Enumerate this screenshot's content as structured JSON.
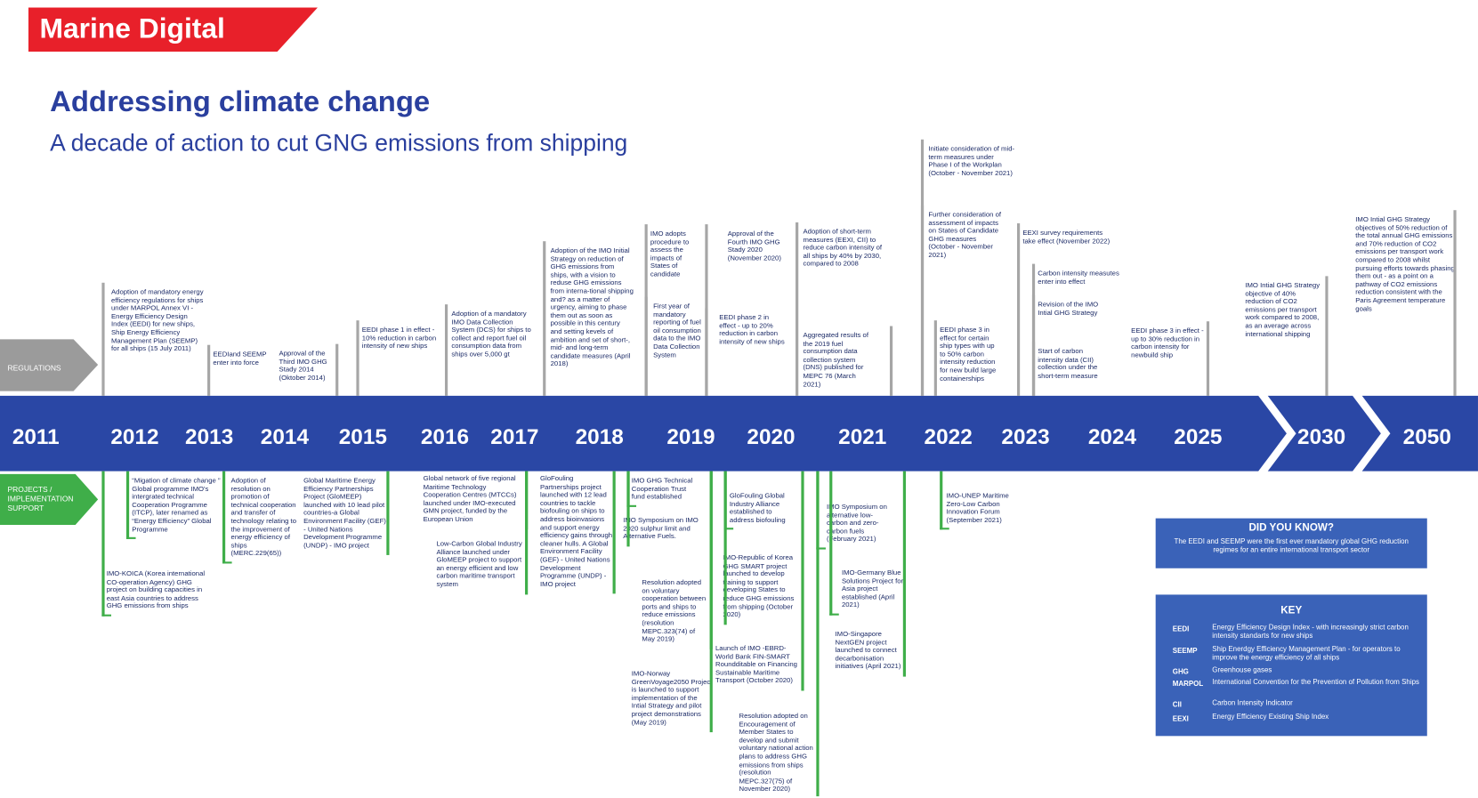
{
  "header": {
    "brand": "Marine Digital",
    "title": "Addressing climate change",
    "subtitle": "A decade of action to cut GNG emissions from shipping"
  },
  "timeline": {
    "regulations_label": "REGULATIONS",
    "projects_label": "PROJECTS / IMPLEMENTATION SUPPORT",
    "years": [
      "2011",
      "2012",
      "2013",
      "2014",
      "2015",
      "2016",
      "2017",
      "2018",
      "2019",
      "2020",
      "2021",
      "2022",
      "2023",
      "2024",
      "2025",
      "2030",
      "2050"
    ]
  },
  "regulations": [
    "Adoption of mandatory energy efficiency regulations for ships under MARPOL Annex VI - Energy Efficiency Design Index (EEDI) for new ships, Ship Energy Efficiency Management Plan (SEEMP) for all ships (15 July 2011)",
    "EEDIand SEEMP enter into force",
    "Approval of the Third IMO GHG Stady 2014 (Oktober 2014)",
    "EEDI phase 1 in effect - 10% reduction in carbon intensity of new ships",
    "Adoption of a mandatory IMO Data Collection System (DCS) for ships to collect and report fuel oil consumption data from ships over 5,000 gt",
    "Adoption of the IMO Initial Strategy on reduction of GHG emissions from ships, with a vision to reduse GHG emissions from interna-tional shipping and? as a matter of urgency, aiming to phase them out as soon as possible in this century and setting kevels of ambition and set of short-, mid- and long-term candidate measures (April 2018)",
    "IMO adopts procedure to assess the impacts of States of candidate",
    "First year of mandatory reporting of fuel oil consumption data to the IMO Data Collection System",
    "Approval of the Fourth IMO GHG Stady 2020 (November 2020)",
    "EEDI phase 2 in effect - up to 20% reduction in carbon intensity of new ships",
    "Adoption of short-term measures (EEXI, CII) to reduce carbon intensity of all ships by 40% by 2030, compared to 2008",
    "Aggregated results of the 2019 fuel consumption data collection system (DNS) published for MEPC 76 (March 2021)",
    "Initiate consideration of mid-term measures under Phase I of the Workplan (October - November 2021)",
    "Further consideration of assessment of impacts on States of Candidate GHG measures (October - November 2021)",
    "EEDI phase 3 in effect for certain ship types with up to 50% carbon intensity reduction for new build large containerships",
    "EEXI survey requirements take effect (November 2022)",
    "Carbon intensity measutes enter into effect",
    "Revision of the IMO Intial GHG Strategy",
    "Start of carbon intensity data (CII) collection under the short-term measure",
    "EEDI phase 3 in effect - up to 30% reduction in carbon intensity for newbuild ship",
    "IMO Intial GHG Strategy objective of 40% reduction of CO2 emissions per transport work compared to 2008, as an average across international shipping",
    "IMO Intial GHG Strategy objectives of 50% reduction of the total annual GHG emissions and 70% reduction of CO2 emissions per transport work compared to 2008 whilst pursuing efforts towards phasing them out - as a point on a pathway of CO2 emissions reduction consistent with the Paris Agreement temperature goals"
  ],
  "projects": [
    "“Migation of climate change ” Global programme IMO's intergrated technical Cooperation Programme (ITCP), later renamed as “Energy Efficiency” Global Programme",
    "IMO-KOICA (Korea international CO-operation Agency) GHG project on building capacities in east Asia countries to address GHG emissions from ships",
    "Adoption of resolution on promotion of technical cooperation and transfer of technology relating to the improvement of energy efficiency of ships (MERC.229(65))",
    "Global Maritime Energy Efficiency Partnerships Project (GloMEEP) launched with 10 lead pilot countries-a Global Environment Facility (GEF) - United Nations Development Programme (UNDP) - IMO project",
    "Global network of five regional Maritime Technology Cooperation Centres (MTCCs) launched under IMO-executed GMN project, funded by the European Union",
    "Low-Carbon Global Industry Alliance launched under GloMEEP project to support an energy efficient and low carbon maritime transport system",
    "GloFouling Partnerships project launched with 12 lead countries to tackle biofouling on ships to address bioinvasions and support energy efficiency gains through cleaner hulls. A Global Environment Facility (GEF) - United Nations Development Programme (UNDP) - IMO project",
    "IMO GHG Technical Cooperation Trust fund established",
    "IMO Symposium on IMO 2020 sulphur limit and Alternative Fuels.",
    "Resolution adopted on voluntary cooperation between ports and ships to reduce emissions (resolution MEPC.323(74) of May 2019)",
    "IMO-Norway GreenVoyage2050 Project is launched to support implementation of the Intial Strategy and pilot project demonstrations (May 2019)",
    "GloFouling Global Industry Alliance established to address biofouling",
    "IMO-Republic of Korea GHG SMART project launched to develop training to support developing States to reduce GHG emissions from shipping (October 2020)",
    "Launch of IMO -EBRD-World Bank FIN-SMART Roundditable on Financing Sustainable Maritime Transport (October 2020)",
    "Resolution adopted on Encouragement of Member States to develop and submit voluntary national action plans to address GHG emissions from ships (resolution MEPC.327(75) of November 2020)",
    "IMO Symposium on alternative low-carbon and zero-carbon fuels (February 2021)",
    "IMO-Germany Blue Solutions Project for Asia project established (April 2021)",
    "IMO-Singapore NextGEN project launched to connect decarbonisation initiatives (April 2021)",
    "IMO-UNEP Maritime Zero-Low Carbon Innovation Forum (September 2021)"
  ],
  "did_you_know": {
    "title": "DID YOU KNOW?",
    "text": "The EEDI and SEEMP were the first ever mandatory global GHG reduction regimes for an entire international transport sector"
  },
  "key": {
    "title": "KEY",
    "items": [
      {
        "term": "EEDI",
        "definition": "Energy Efficiency Design Index - with increasingly strict carbon intensity standarts for new ships"
      },
      {
        "term": "SEEMP",
        "definition": "Ship Enerdgy Efficiency Management Plan - for operators to improve the energy efficiency of all ships"
      },
      {
        "term": "GHG",
        "definition": "Greenhouse gases"
      },
      {
        "term": "MARPOL",
        "definition": "International Convention for the Prevention of Pollution from Ships"
      },
      {
        "term": "CII",
        "definition": "Carbon Intensity Indicator"
      },
      {
        "term": "EEXI",
        "definition": "Energy Efficiency Existing Ship Index"
      }
    ]
  }
}
